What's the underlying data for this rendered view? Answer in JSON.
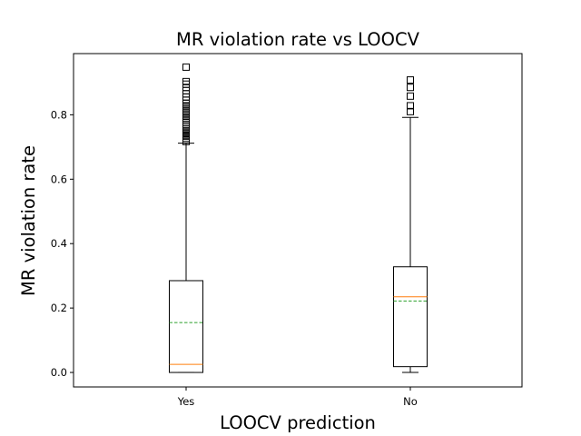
{
  "chart_data": {
    "type": "box",
    "title": "MR violation rate vs LOOCV",
    "xlabel": "LOOCV prediction",
    "ylabel": "MR violation rate",
    "ylim": [
      -0.045,
      0.99
    ],
    "yticks": [
      0.0,
      0.2,
      0.4,
      0.6,
      0.8
    ],
    "ytick_labels": [
      "0.0",
      "0.2",
      "0.4",
      "0.6",
      "0.8"
    ],
    "grid": false,
    "categories": [
      "Yes",
      "No"
    ],
    "boxes": [
      {
        "name": "Yes",
        "whisker_low": 0.0,
        "q1": 0.0,
        "median": 0.025,
        "mean": 0.155,
        "q3": 0.285,
        "whisker_high": 0.712,
        "outliers": [
          0.717,
          0.722,
          0.727,
          0.733,
          0.738,
          0.744,
          0.75,
          0.756,
          0.762,
          0.768,
          0.775,
          0.782,
          0.789,
          0.797,
          0.805,
          0.812,
          0.82,
          0.828,
          0.836,
          0.845,
          0.855,
          0.865,
          0.875,
          0.885,
          0.895,
          0.903,
          0.948
        ]
      },
      {
        "name": "No",
        "whisker_low": 0.0,
        "q1": 0.018,
        "median": 0.235,
        "mean": 0.222,
        "q3": 0.328,
        "whisker_high": 0.792,
        "outliers": [
          0.81,
          0.828,
          0.858,
          0.885,
          0.908
        ]
      }
    ],
    "colors": {
      "box": "#000000",
      "median": "#ff7f0e",
      "mean": "#2ca02c",
      "outlier": "#000000"
    }
  }
}
